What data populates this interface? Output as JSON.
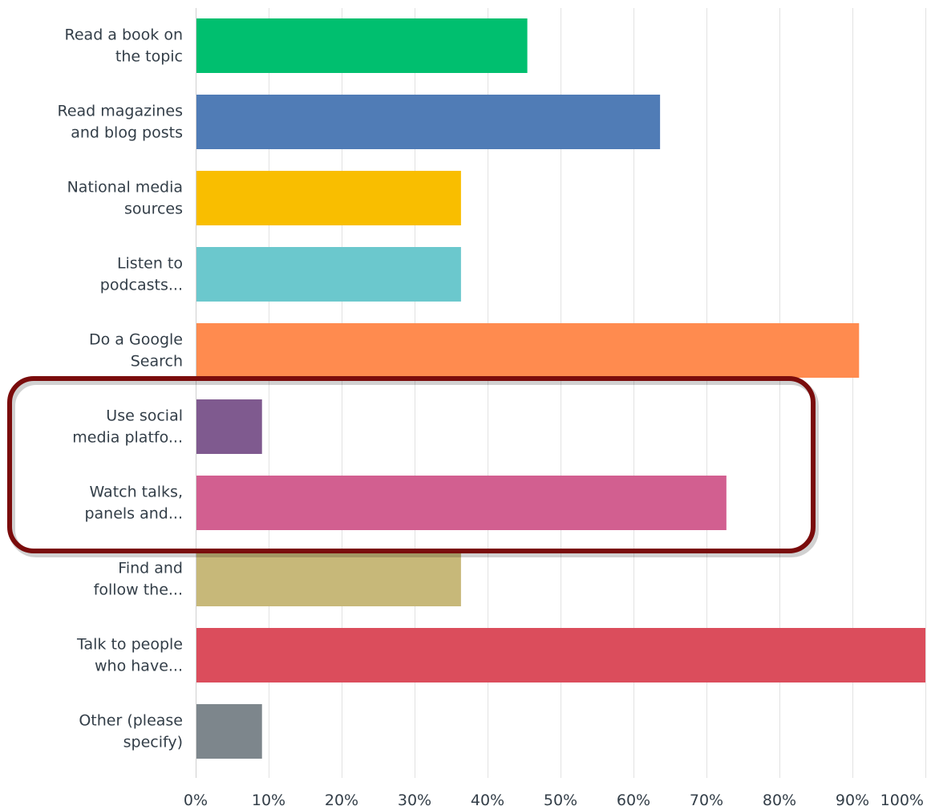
{
  "chart_data": {
    "type": "bar",
    "orientation": "horizontal",
    "categories": [
      [
        "Read a book on",
        "the topic"
      ],
      [
        "Read magazines",
        "and blog posts"
      ],
      [
        "National media",
        "sources"
      ],
      [
        "Listen to",
        "podcasts..."
      ],
      [
        "Do a Google",
        "Search"
      ],
      [
        "Use social",
        "media platfo..."
      ],
      [
        "Watch talks,",
        "panels and..."
      ],
      [
        "Find and",
        "follow the..."
      ],
      [
        "Talk to people",
        "who have..."
      ],
      [
        "Other (please",
        "specify)"
      ]
    ],
    "values": [
      45.45,
      63.64,
      36.36,
      36.36,
      90.91,
      9.09,
      72.73,
      36.36,
      100,
      9.09
    ],
    "colors": [
      "#00bf6f",
      "#507cb6",
      "#f9be00",
      "#6bc8cd",
      "#ff8b4f",
      "#7f5a8f",
      "#d25f90",
      "#c7b879",
      "#db4d5c",
      "#7d868c"
    ],
    "xlim": [
      0,
      100
    ],
    "ticks": [
      "0%",
      "10%",
      "20%",
      "30%",
      "40%",
      "50%",
      "60%",
      "70%",
      "80%",
      "90%",
      "100%"
    ],
    "grid": true,
    "highlighted_categories": [
      5,
      6
    ],
    "highlight_color": "#7a0c0c"
  }
}
